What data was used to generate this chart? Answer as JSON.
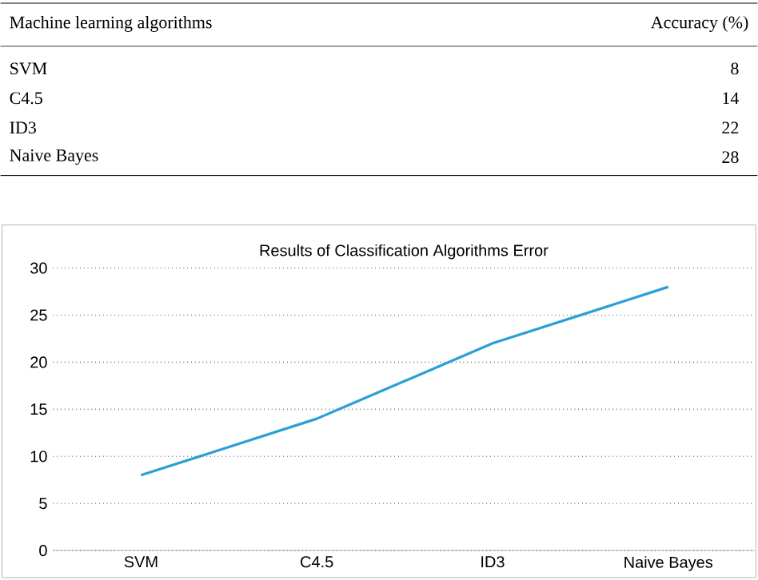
{
  "chart_data": {
    "type": "line",
    "title": "Results of Classification Algorithms Error",
    "annotations": [
      "Machine learning algorithms",
      "Accuracy (%)",
      "8",
      "14",
      "22",
      "28"
    ],
    "categories": [
      "SVM",
      "C4.5",
      "ID3",
      "Naive Bayes"
    ],
    "values": [
      8,
      14,
      22,
      28
    ],
    "color": "#2a9fd6",
    "ylim": [
      0,
      30
    ],
    "yticks": [
      0,
      5,
      10,
      15,
      20,
      25,
      30
    ],
    "grid": "y",
    "marker": "none",
    "line_style": "solid"
  }
}
